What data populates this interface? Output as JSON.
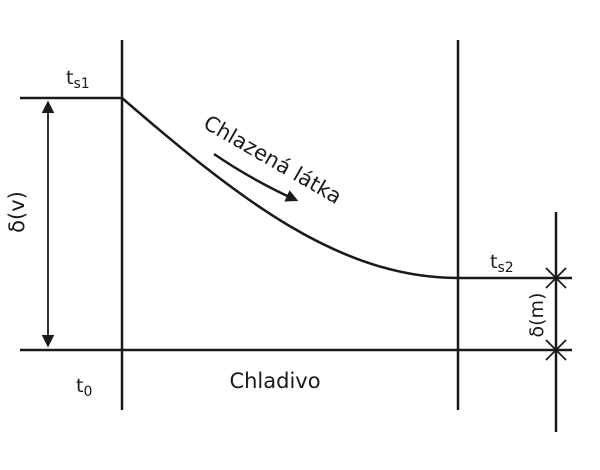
{
  "diagram": {
    "labels": {
      "ts1": {
        "main": "t",
        "sub": "s1"
      },
      "ts2": {
        "main": "t",
        "sub": "s2"
      },
      "t0": {
        "main": "t",
        "sub": "0"
      },
      "delta_v": "δ(v)",
      "delta_m": "δ(m)",
      "cooled_substance": "Chlazená látka",
      "coolant": "Chladivo"
    },
    "colors": {
      "stroke": "#1a1a1a",
      "background": "#ffffff"
    }
  }
}
